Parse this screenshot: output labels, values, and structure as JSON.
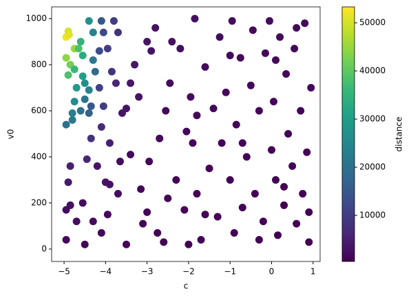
{
  "chart_data": {
    "type": "scatter",
    "x_label": "c",
    "y_label": "v0",
    "colorbar_label": "distance",
    "colormap": "viridis",
    "xlim": [
      -5.3,
      1.17
    ],
    "ylim": [
      -54,
      1051
    ],
    "clim": [
      430,
      53300
    ],
    "xticks": [
      {
        "value": -5,
        "label": "−5"
      },
      {
        "value": -4,
        "label": "−4"
      },
      {
        "value": -3,
        "label": "−3"
      },
      {
        "value": -2,
        "label": "−2"
      },
      {
        "value": -1,
        "label": "−1"
      },
      0,
      1
    ],
    "yticks": [
      0,
      200,
      400,
      600,
      800,
      1000
    ],
    "cticks": [
      10000,
      20000,
      30000,
      40000,
      50000
    ],
    "x": [
      -4.95,
      -4.9,
      -4.88,
      -4.95,
      -4.85,
      -4.75,
      -4.65,
      -4.9,
      -4.75,
      -4.6,
      -4.55,
      -4.7,
      -4.55,
      -4.5,
      -4.4,
      -4.75,
      -4.8,
      -4.95,
      -4.8,
      -4.6,
      -4.5,
      -4.4,
      -4.3,
      -4.3,
      -4.25,
      -4.4,
      -4.35,
      -4.1,
      -4.05,
      -4.15,
      -3.95,
      -3.8,
      -3.7,
      -3.85,
      -3.75,
      -4.15,
      -4.05,
      -4.1,
      -3.9,
      -4.35,
      -4.45,
      -4.85,
      -4.9,
      -4.95,
      -4.85,
      -4.7,
      -4.55,
      -4.5,
      -4.95,
      -4.3,
      -4.2,
      -4.0,
      -3.9,
      -4.1,
      -3.95,
      -3.7,
      -3.65,
      -3.6,
      -3.5,
      -3.5,
      -3.4,
      -3.3,
      -3.2,
      -3.15,
      -3.1,
      -3.0,
      -2.9,
      -2.95,
      -2.75,
      -2.7,
      -2.6,
      -2.55,
      -2.45,
      -2.4,
      -2.3,
      -2.2,
      -2.1,
      -2.05,
      -1.95,
      -1.9,
      -1.85,
      -1.8,
      -1.7,
      -1.6,
      -1.5,
      -1.4,
      -1.3,
      -1.25,
      -1.2,
      -1.1,
      -1.0,
      -0.95,
      -0.9,
      -0.85,
      -0.75,
      -0.7,
      -0.6,
      -0.5,
      -0.45,
      -0.4,
      -0.3,
      -0.2,
      -0.15,
      -0.05,
      0.0,
      0.05,
      0.1,
      0.15,
      0.2,
      0.3,
      0.35,
      0.4,
      0.5,
      0.55,
      0.6,
      0.7,
      0.75,
      0.8,
      0.85,
      0.9,
      0.95,
      0.9,
      0.6,
      -2.8,
      -3.4,
      -2.0,
      -1.6,
      -0.3,
      0.3,
      -1.0,
      -2.5,
      -3.0,
      -1.8,
      -0.7,
      0.1
    ],
    "y": [
      920,
      945,
      930,
      830,
      800,
      870,
      870,
      755,
      780,
      900,
      840,
      700,
      750,
      720,
      690,
      640,
      590,
      540,
      560,
      600,
      650,
      990,
      940,
      820,
      770,
      590,
      620,
      990,
      940,
      860,
      870,
      990,
      940,
      770,
      720,
      700,
      620,
      530,
      460,
      480,
      390,
      360,
      290,
      170,
      190,
      120,
      200,
      20,
      40,
      120,
      360,
      290,
      280,
      70,
      150,
      240,
      380,
      590,
      610,
      20,
      720,
      800,
      660,
      260,
      110,
      900,
      860,
      380,
      70,
      480,
      30,
      600,
      720,
      900,
      300,
      870,
      170,
      510,
      660,
      460,
      1000,
      240,
      40,
      790,
      350,
      610,
      140,
      920,
      460,
      680,
      300,
      990,
      70,
      540,
      830,
      180,
      400,
      710,
      950,
      240,
      600,
      120,
      850,
      990,
      430,
      640,
      300,
      60,
      920,
      190,
      760,
      500,
      360,
      870,
      110,
      600,
      240,
      980,
      420,
      30,
      700,
      160,
      960,
      960,
      410,
      20,
      150,
      40,
      270,
      840,
      220,
      160,
      580,
      460,
      820
    ],
    "color_values": [
      52000,
      50000,
      51000,
      44000,
      42000,
      45000,
      38000,
      38000,
      36000,
      35000,
      33000,
      29000,
      30000,
      27000,
      24000,
      26000,
      24000,
      20000,
      22000,
      20000,
      21000,
      27000,
      24000,
      22000,
      19000,
      17000,
      15000,
      15000,
      12000,
      13000,
      10000,
      10000,
      8000,
      8000,
      6000,
      11000,
      10000,
      7000,
      5000,
      8000,
      6000,
      5000,
      4000,
      2000,
      2200,
      2000,
      2200,
      1200,
      1200,
      1800,
      3500,
      3000,
      2800,
      1400,
      1500,
      2000,
      2200,
      3500,
      3400,
      800,
      3600,
      3800,
      3000,
      1500,
      1000,
      3500,
      3000,
      1500,
      700,
      1500,
      700,
      1800,
      2200,
      2700,
      1100,
      2400,
      900,
      1400,
      1800,
      1300,
      2600,
      900,
      600,
      1900,
      1000,
      1500,
      700,
      2100,
      1100,
      1500,
      800,
      2200,
      500,
      1200,
      1700,
      600,
      900,
      1400,
      1900,
      600,
      1200,
      500,
      1700,
      1900,
      900,
      1200,
      700,
      450,
      1800,
      550,
      1400,
      1000,
      800,
      1600,
      450,
      1100,
      600,
      1800,
      850,
      400,
      1300,
      500,
      1700,
      3000,
      1800,
      550,
      750,
      450,
      650,
      1800,
      1000,
      1200,
      1600,
      1000,
      1500
    ]
  }
}
